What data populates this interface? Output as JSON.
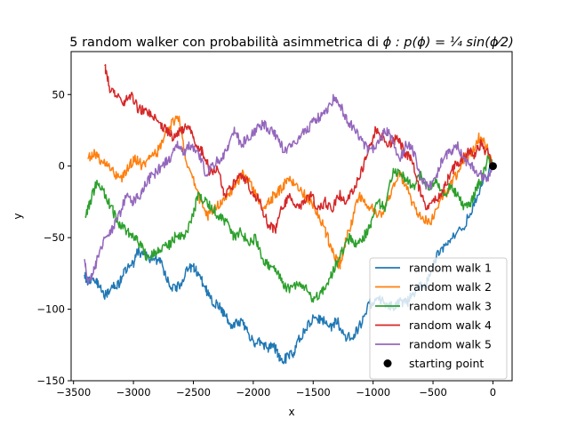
{
  "chart_data": {
    "type": "line",
    "title_text": "5 random walker con probabilità asimmetrica di ",
    "title_math": "ϕ : p(ϕ) = ¼ sin(ϕ⁄2)",
    "xlabel": "x",
    "ylabel": "y",
    "xlim": [
      -3520,
      160
    ],
    "ylim": [
      -150,
      80
    ],
    "xticks": [
      -3500,
      -3000,
      -2500,
      -2000,
      -1500,
      -1000,
      -500,
      0
    ],
    "xtick_labels": [
      "−3500",
      "−3000",
      "−2500",
      "−2000",
      "−1500",
      "−1000",
      "−500",
      "0"
    ],
    "yticks": [
      -150,
      -100,
      -50,
      0,
      50
    ],
    "ytick_labels": [
      "−150",
      "−100",
      "−50",
      "0",
      "50"
    ],
    "grid": false,
    "legend_position": "lower right",
    "series": [
      {
        "name": "random walk 1",
        "color": "#1f77b4",
        "x": [
          0,
          -80,
          -150,
          -230,
          -330,
          -400,
          -470,
          -520,
          -560,
          -620,
          -680,
          -720,
          -770,
          -820,
          -880,
          -960,
          -1040,
          -1100,
          -1160,
          -1230,
          -1300,
          -1360,
          -1420,
          -1480,
          -1540,
          -1600,
          -1660,
          -1700,
          -1750,
          -1790,
          -1830,
          -1880,
          -1940,
          -2000,
          -2060,
          -2120,
          -2180,
          -2240,
          -2280,
          -2330,
          -2380,
          -2430,
          -2480,
          -2540,
          -2600,
          -2660,
          -2720,
          -2780,
          -2840,
          -2900,
          -2970,
          -3000,
          -3060,
          -3120,
          -3180,
          -3240,
          -3300,
          -3340,
          -3380,
          -3410
        ],
        "y": [
          0,
          -10,
          -25,
          -40,
          -50,
          -57,
          -63,
          -75,
          -83,
          -85,
          -90,
          -96,
          -95,
          -98,
          -97,
          -93,
          -97,
          -110,
          -118,
          -120,
          -108,
          -113,
          -108,
          -105,
          -110,
          -118,
          -130,
          -132,
          -136,
          -133,
          -125,
          -128,
          -122,
          -124,
          -112,
          -108,
          -112,
          -104,
          -98,
          -95,
          -88,
          -80,
          -72,
          -70,
          -82,
          -86,
          -80,
          -65,
          -66,
          -62,
          -60,
          -68,
          -72,
          -82,
          -85,
          -90,
          -82,
          -78,
          -80,
          -76
        ]
      },
      {
        "name": "random walk 2",
        "color": "#ff7f0e",
        "x": [
          0,
          -60,
          -120,
          -170,
          -240,
          -300,
          -380,
          -450,
          -520,
          -600,
          -660,
          -720,
          -780,
          -860,
          -930,
          -1000,
          -1070,
          -1120,
          -1180,
          -1240,
          -1280,
          -1340,
          -1400,
          -1480,
          -1560,
          -1640,
          -1700,
          -1760,
          -1820,
          -1870,
          -1920,
          -1980,
          -2040,
          -2090,
          -2150,
          -2200,
          -2260,
          -2320,
          -2380,
          -2440,
          -2500,
          -2560,
          -2620,
          -2680,
          -2740,
          -2800,
          -2860,
          -2920,
          -2980,
          -3040,
          -3100,
          -3160,
          -3220,
          -3280,
          -3330,
          -3380
        ],
        "y": [
          0,
          15,
          20,
          10,
          5,
          -5,
          -18,
          -25,
          -40,
          -35,
          -28,
          -15,
          -5,
          -20,
          -35,
          -30,
          -25,
          -20,
          -40,
          -55,
          -70,
          -60,
          -45,
          -30,
          -20,
          -15,
          -8,
          -15,
          -20,
          -25,
          -30,
          -20,
          -10,
          -5,
          -15,
          -18,
          -25,
          -30,
          -35,
          -25,
          -10,
          5,
          35,
          30,
          20,
          10,
          5,
          0,
          5,
          0,
          -10,
          -5,
          0,
          5,
          10,
          5
        ]
      },
      {
        "name": "random walk 3",
        "color": "#2ca02c",
        "x": [
          0,
          -40,
          -80,
          -130,
          -180,
          -240,
          -300,
          -360,
          -420,
          -480,
          -540,
          -600,
          -660,
          -720,
          -780,
          -840,
          -900,
          -960,
          -1020,
          -1080,
          -1140,
          -1200,
          -1260,
          -1320,
          -1380,
          -1440,
          -1500,
          -1560,
          -1620,
          -1680,
          -1740,
          -1800,
          -1860,
          -1920,
          -1980,
          -2040,
          -2100,
          -2160,
          -2220,
          -2280,
          -2340,
          -2400,
          -2460,
          -2520,
          -2580,
          -2640,
          -2700,
          -2760,
          -2820,
          -2880,
          -2940,
          -3000,
          -3060,
          -3120,
          -3180,
          -3240,
          -3300,
          -3360,
          -3400
        ],
        "y": [
          0,
          5,
          -5,
          -15,
          -25,
          -30,
          -20,
          -15,
          -20,
          -10,
          -15,
          -5,
          -15,
          -10,
          -5,
          -5,
          -30,
          -25,
          -40,
          -50,
          -55,
          -50,
          -60,
          -70,
          -85,
          -88,
          -95,
          -85,
          -80,
          -85,
          -85,
          -75,
          -70,
          -65,
          -50,
          -55,
          -45,
          -50,
          -40,
          -35,
          -30,
          -25,
          -20,
          -40,
          -50,
          -48,
          -55,
          -58,
          -60,
          -65,
          -55,
          -50,
          -45,
          -40,
          -30,
          -20,
          -10,
          -25,
          -35
        ]
      },
      {
        "name": "random walk 4",
        "color": "#d62728",
        "x": [
          0,
          -50,
          -100,
          -150,
          -200,
          -260,
          -320,
          -380,
          -440,
          -500,
          -560,
          -620,
          -680,
          -740,
          -800,
          -860,
          -920,
          -980,
          -1040,
          -1100,
          -1160,
          -1220,
          -1280,
          -1340,
          -1400,
          -1460,
          -1520,
          -1580,
          -1640,
          -1700,
          -1760,
          -1820,
          -1880,
          -1940,
          -2000,
          -2060,
          -2120,
          -2180,
          -2240,
          -2300,
          -2360,
          -2420,
          -2480,
          -2540,
          -2600,
          -2660,
          -2720,
          -2780,
          -2840,
          -2900,
          -2960,
          -3020,
          -3080,
          -3140,
          -3200,
          -3240
        ],
        "y": [
          0,
          10,
          15,
          8,
          10,
          5,
          0,
          -10,
          -20,
          -25,
          -30,
          -15,
          5,
          10,
          20,
          15,
          20,
          25,
          10,
          -5,
          -15,
          -25,
          -20,
          -30,
          -25,
          -30,
          -20,
          -25,
          -30,
          -20,
          -30,
          -45,
          -40,
          -25,
          -20,
          -10,
          -5,
          -15,
          -20,
          0,
          -5,
          10,
          15,
          30,
          25,
          20,
          25,
          30,
          35,
          38,
          40,
          50,
          45,
          48,
          55,
          70
        ]
      },
      {
        "name": "random walk 5",
        "color": "#9467bd",
        "x": [
          0,
          -60,
          -120,
          -180,
          -240,
          -300,
          -360,
          -420,
          -480,
          -540,
          -600,
          -660,
          -720,
          -780,
          -840,
          -900,
          -960,
          -1020,
          -1080,
          -1140,
          -1200,
          -1260,
          -1320,
          -1380,
          -1440,
          -1500,
          -1560,
          -1620,
          -1680,
          -1740,
          -1800,
          -1860,
          -1920,
          -1980,
          -2040,
          -2100,
          -2160,
          -2220,
          -2280,
          -2340,
          -2400,
          -2460,
          -2520,
          -2580,
          -2640,
          -2700,
          -2760,
          -2820,
          -2880,
          -2940,
          -3000,
          -3060,
          -3120,
          -3180,
          -3240,
          -3300,
          -3340,
          -3380,
          -3410
        ],
        "y": [
          0,
          -10,
          -5,
          0,
          5,
          15,
          10,
          5,
          -10,
          -15,
          -10,
          10,
          15,
          5,
          20,
          25,
          15,
          10,
          15,
          25,
          30,
          40,
          48,
          40,
          35,
          30,
          25,
          20,
          15,
          10,
          20,
          25,
          30,
          25,
          20,
          15,
          25,
          10,
          5,
          0,
          -5,
          10,
          15,
          10,
          15,
          5,
          0,
          -5,
          -10,
          -20,
          -25,
          -20,
          -35,
          -45,
          -50,
          -65,
          -75,
          -80,
          -65
        ]
      }
    ],
    "markers": [
      {
        "name": "starting point",
        "color": "#000000",
        "x": 0,
        "y": 0
      }
    ]
  }
}
